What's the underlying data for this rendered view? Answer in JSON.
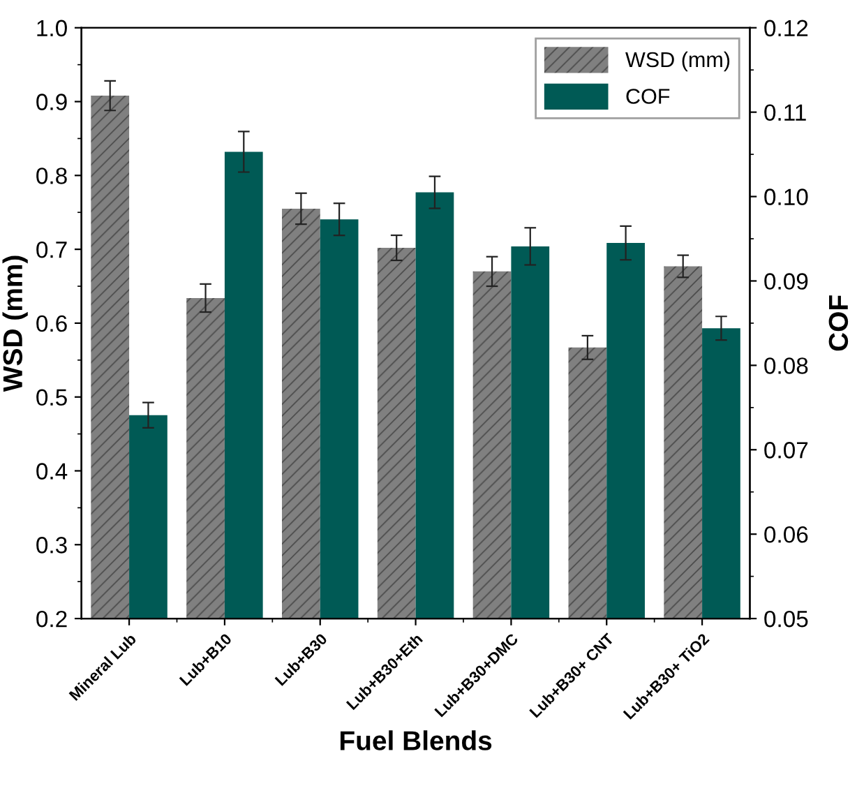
{
  "chart_data": {
    "type": "bar",
    "xlabel": "Fuel Blends",
    "ylabel": "WSD (mm)",
    "y2label": "COF",
    "categories": [
      "Mineral Lub",
      "Lub+B10",
      "Lub+B30",
      "Lub+B30+Eth",
      "Lub+B30+DMC",
      "Lub+B30+ CNT",
      "Lub+B30+ TiO2"
    ],
    "series": [
      {
        "name": "WSD (mm)",
        "color": "#808080",
        "values": [
          0.908,
          0.634,
          0.755,
          0.702,
          0.67,
          0.567,
          0.677
        ],
        "errors": [
          0.02,
          0.019,
          0.021,
          0.017,
          0.02,
          0.016,
          0.015
        ]
      },
      {
        "name": "COF",
        "color": "#005a55",
        "axis": "y2",
        "values": [
          0.0741,
          0.1053,
          0.0973,
          0.1005,
          0.0941,
          0.0945,
          0.0844
        ],
        "errors": [
          0.0015,
          0.0024,
          0.0019,
          0.0019,
          0.0022,
          0.002,
          0.0014
        ]
      }
    ],
    "ylim": [
      0.2,
      1.0
    ],
    "yticks": [
      0.2,
      0.3,
      0.4,
      0.5,
      0.6,
      0.7,
      0.8,
      0.9,
      {
        "value": 1.0,
        "label": "1.0"
      }
    ],
    "y2lim": [
      0.05,
      0.12
    ],
    "y2ticks": [
      0.05,
      0.06,
      0.07,
      0.08,
      0.09,
      {
        "value": 0.1,
        "label": "0.10"
      },
      0.11,
      0.12
    ],
    "legend": "top right",
    "grid": false
  }
}
